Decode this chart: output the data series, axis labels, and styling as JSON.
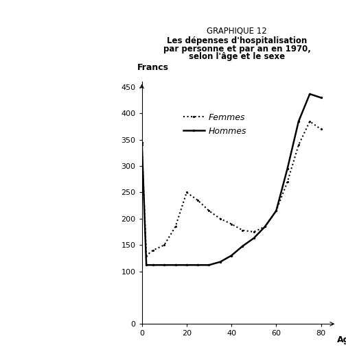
{
  "title_line1": "Les dépenses d'hospitalisation",
  "title_line2": "par personne et par an en 1970,",
  "title_line3": "selon l'âge et le sexe",
  "graphique_label": "GRAPHIQUE 12",
  "ylabel": "Francs",
  "xlabel": "Age",
  "xlim": [
    0,
    85
  ],
  "ylim": [
    0,
    460
  ],
  "yticks": [
    0,
    100,
    150,
    200,
    250,
    300,
    350,
    400,
    450
  ],
  "xticks": [
    0,
    20,
    40,
    60,
    80
  ],
  "femmes_x": [
    0,
    2,
    5,
    10,
    15,
    20,
    25,
    30,
    35,
    40,
    45,
    50,
    55,
    60,
    65,
    70,
    75,
    80
  ],
  "femmes_y": [
    340,
    130,
    140,
    150,
    185,
    250,
    235,
    215,
    200,
    190,
    178,
    175,
    185,
    215,
    270,
    340,
    385,
    370
  ],
  "hommes_x": [
    0,
    2,
    5,
    10,
    15,
    20,
    25,
    30,
    35,
    40,
    45,
    50,
    55,
    60,
    65,
    70,
    75,
    80
  ],
  "hommes_y": [
    345,
    112,
    112,
    112,
    112,
    112,
    112,
    112,
    118,
    130,
    148,
    163,
    185,
    215,
    295,
    385,
    437,
    430
  ],
  "femmes_color": "#000000",
  "hommes_color": "#000000",
  "femmes_label": "Femmes",
  "hommes_label": "Hommes",
  "background_color": "#ffffff",
  "title_fontsize": 8.5,
  "axis_fontsize": 8.5,
  "legend_fontsize": 9
}
